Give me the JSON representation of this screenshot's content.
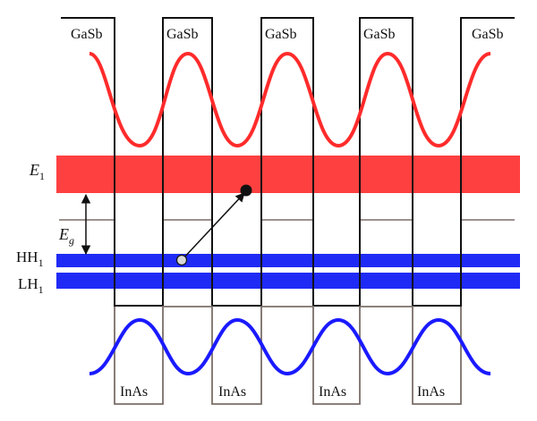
{
  "layers": {
    "top_material": "GaSb",
    "bottom_material": "InAs"
  },
  "energy_labels": {
    "electron_band": {
      "symbol": "E",
      "subscript": "1"
    },
    "bandgap": {
      "symbol": "E",
      "subscript": "g"
    },
    "heavy_hole_band": {
      "symbol": "HH",
      "subscript": "1"
    },
    "light_hole_band": {
      "symbol": "LH",
      "subscript": "1"
    }
  },
  "colors": {
    "electron": "#ff2b2b",
    "electron_band": "#ff4040",
    "hole": "#1a1aff",
    "hole_band": "#1f2bf5",
    "outline": "#111111",
    "grey_line": "#7a6e6a"
  }
}
